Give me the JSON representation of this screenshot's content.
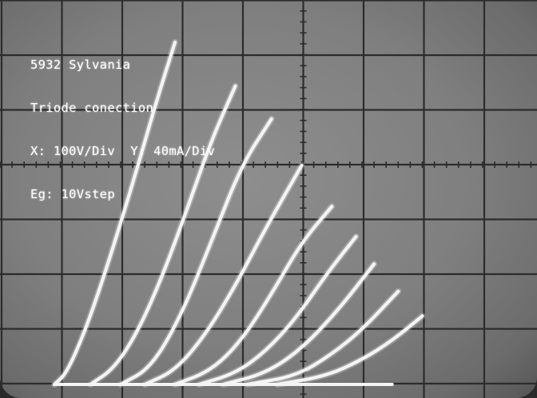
{
  "annotations": {
    "line1": "5932 Sylvania",
    "line2": "Triode conection",
    "line3": "X: 100V/Div  Y: 40mA/Div",
    "line4": "Eg: 10Vstep"
  },
  "chart_data": {
    "type": "line",
    "title": "",
    "xlabel": "",
    "ylabel": "",
    "x_unit": "V",
    "y_unit": "mA",
    "x_per_div": 100,
    "y_per_div": 40,
    "grid": true,
    "legend": "none",
    "trace_color": "#f4f4f4",
    "series": [
      {
        "x": [
          0,
          20,
          50,
          80,
          110,
          140,
          170,
          200
        ],
        "y": [
          0,
          8,
          38,
          76,
          118,
          162,
          208,
          250
        ]
      },
      {
        "x": [
          60,
          100,
          140,
          180,
          220,
          260,
          300
        ],
        "y": [
          0,
          12,
          40,
          80,
          128,
          178,
          218
        ]
      },
      {
        "x": [
          110,
          160,
          210,
          260,
          310,
          360
        ],
        "y": [
          0,
          12,
          50,
          104,
          160,
          194
        ]
      },
      {
        "x": [
          150,
          200,
          250,
          300,
          350,
          410
        ],
        "y": [
          0,
          10,
          36,
          72,
          114,
          160
        ]
      },
      {
        "x": [
          200,
          260,
          310,
          360,
          410,
          460
        ],
        "y": [
          0,
          10,
          32,
          66,
          104,
          130
        ]
      },
      {
        "x": [
          240,
          300,
          350,
          400,
          450,
          500
        ],
        "y": [
          0,
          8,
          24,
          48,
          80,
          108
        ]
      },
      {
        "x": [
          280,
          350,
          410,
          470,
          530
        ],
        "y": [
          0,
          8,
          26,
          54,
          88
        ]
      },
      {
        "x": [
          320,
          400,
          460,
          510,
          570
        ],
        "y": [
          0,
          6,
          22,
          40,
          68
        ]
      },
      {
        "x": [
          370,
          450,
          510,
          560,
          610
        ],
        "y": [
          0,
          6,
          18,
          32,
          50
        ]
      }
    ]
  }
}
